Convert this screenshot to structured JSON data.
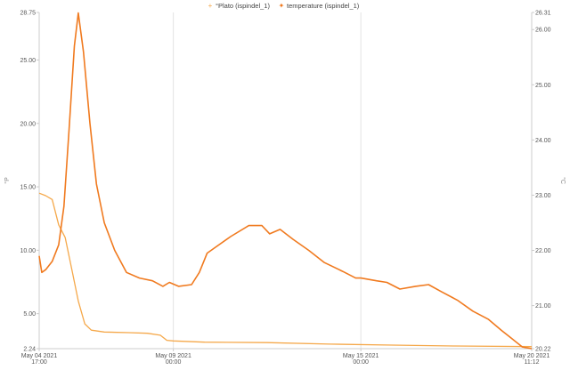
{
  "chart_data": {
    "type": "line",
    "legend": {
      "position": "top-center",
      "entries": [
        {
          "name": "°Plato  (ispindel_1)",
          "color": "#f5a84a",
          "marker": "+"
        },
        {
          "name": "temperature  (ispindel_1)",
          "color": "#f07a1f",
          "marker": "✦"
        }
      ]
    },
    "x": {
      "type": "datetime",
      "range": [
        "2021-05-04T17:00",
        "2021-05-20T11:12"
      ],
      "ticks": [
        {
          "label_top": "May 04 2021",
          "label_bottom": "17:00",
          "value": "2021-05-04T17:00"
        },
        {
          "label_top": "May 09 2021",
          "label_bottom": "00:00",
          "value": "2021-05-09T00:00"
        },
        {
          "label_top": "May 15 2021",
          "label_bottom": "00:00",
          "value": "2021-05-15T00:00"
        },
        {
          "label_top": "May 20 2021",
          "label_bottom": "11:12",
          "value": "2021-05-20T11:12"
        }
      ]
    },
    "y_left": {
      "label": "°P",
      "range": [
        2.24,
        28.75
      ],
      "ticks": [
        "2.24",
        "5.00",
        "10.00",
        "15.00",
        "20.00",
        "25.00",
        "28.75"
      ]
    },
    "y_right": {
      "label": "°C",
      "range": [
        20.22,
        26.31
      ],
      "ticks": [
        "20.22",
        "21.00",
        "22.00",
        "23.00",
        "24.00",
        "25.00",
        "26.00",
        "26.31"
      ]
    },
    "grid": {
      "vertical": true,
      "horizontal": false
    },
    "series": [
      {
        "name": "°Plato  (ispindel_1)",
        "axis": "left",
        "color": "#f5a84a",
        "points": [
          [
            "2021-05-04T17:00",
            14.5
          ],
          [
            "2021-05-04T22:00",
            14.3
          ],
          [
            "2021-05-05T03:00",
            14.0
          ],
          [
            "2021-05-05T08:00",
            12.0
          ],
          [
            "2021-05-05T13:00",
            11.0
          ],
          [
            "2021-05-05T18:00",
            8.5
          ],
          [
            "2021-05-05T23:00",
            6.0
          ],
          [
            "2021-05-06T04:00",
            4.2
          ],
          [
            "2021-05-06T09:00",
            3.7
          ],
          [
            "2021-05-06T19:00",
            3.55
          ],
          [
            "2021-05-07T14:00",
            3.5
          ],
          [
            "2021-05-08T04:00",
            3.45
          ],
          [
            "2021-05-08T14:00",
            3.3
          ],
          [
            "2021-05-08T19:00",
            2.9
          ],
          [
            "2021-05-09T00:00",
            2.85
          ],
          [
            "2021-05-10T00:00",
            2.75
          ],
          [
            "2021-05-12T00:00",
            2.72
          ],
          [
            "2021-05-14T00:00",
            2.6
          ],
          [
            "2021-05-16T00:00",
            2.52
          ],
          [
            "2021-05-18T00:00",
            2.45
          ],
          [
            "2021-05-20T11:12",
            2.4
          ]
        ]
      },
      {
        "name": "temperature  (ispindel_1)",
        "axis": "right",
        "color": "#f07a1f",
        "points": [
          [
            "2021-05-04T17:00",
            21.9
          ],
          [
            "2021-05-04T19:00",
            21.6
          ],
          [
            "2021-05-04T22:00",
            21.65
          ],
          [
            "2021-05-05T03:00",
            21.8
          ],
          [
            "2021-05-05T08:00",
            22.1
          ],
          [
            "2021-05-05T12:00",
            22.8
          ],
          [
            "2021-05-05T16:00",
            24.2
          ],
          [
            "2021-05-05T20:00",
            25.7
          ],
          [
            "2021-05-05T23:00",
            26.3
          ],
          [
            "2021-05-06T03:00",
            25.6
          ],
          [
            "2021-05-06T08:00",
            24.3
          ],
          [
            "2021-05-06T13:00",
            23.2
          ],
          [
            "2021-05-06T19:00",
            22.5
          ],
          [
            "2021-05-07T03:00",
            22.0
          ],
          [
            "2021-05-07T12:00",
            21.6
          ],
          [
            "2021-05-07T22:00",
            21.5
          ],
          [
            "2021-05-08T08:00",
            21.45
          ],
          [
            "2021-05-08T16:00",
            21.35
          ],
          [
            "2021-05-08T21:00",
            21.42
          ],
          [
            "2021-05-09T04:00",
            21.35
          ],
          [
            "2021-05-09T14:00",
            21.38
          ],
          [
            "2021-05-09T20:00",
            21.6
          ],
          [
            "2021-05-10T02:00",
            21.95
          ],
          [
            "2021-05-10T08:00",
            22.05
          ],
          [
            "2021-05-10T20:00",
            22.25
          ],
          [
            "2021-05-11T10:00",
            22.45
          ],
          [
            "2021-05-11T20:00",
            22.45
          ],
          [
            "2021-05-12T02:00",
            22.3
          ],
          [
            "2021-05-12T10:00",
            22.38
          ],
          [
            "2021-05-12T20:00",
            22.2
          ],
          [
            "2021-05-13T08:00",
            22.0
          ],
          [
            "2021-05-13T20:00",
            21.78
          ],
          [
            "2021-05-14T10:00",
            21.62
          ],
          [
            "2021-05-14T20:00",
            21.5
          ],
          [
            "2021-05-15T00:00",
            21.5
          ],
          [
            "2021-05-15T12:00",
            21.45
          ],
          [
            "2021-05-15T20:00",
            21.42
          ],
          [
            "2021-05-16T06:00",
            21.3
          ],
          [
            "2021-05-16T18:00",
            21.35
          ],
          [
            "2021-05-17T04:00",
            21.38
          ],
          [
            "2021-05-17T14:00",
            21.25
          ],
          [
            "2021-05-18T02:00",
            21.1
          ],
          [
            "2021-05-18T14:00",
            20.9
          ],
          [
            "2021-05-19T02:00",
            20.75
          ],
          [
            "2021-05-19T12:00",
            20.55
          ],
          [
            "2021-05-19T20:00",
            20.4
          ],
          [
            "2021-05-20T04:00",
            20.25
          ],
          [
            "2021-05-20T11:12",
            20.22
          ]
        ]
      }
    ]
  }
}
